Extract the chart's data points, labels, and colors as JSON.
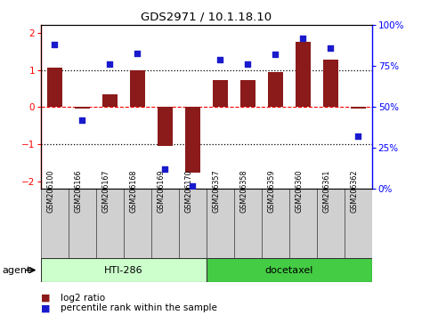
{
  "title": "GDS2971 / 10.1.18.10",
  "samples": [
    "GSM206100",
    "GSM206166",
    "GSM206167",
    "GSM206168",
    "GSM206169",
    "GSM206170",
    "GSM206357",
    "GSM206358",
    "GSM206359",
    "GSM206360",
    "GSM206361",
    "GSM206362"
  ],
  "log2_ratio": [
    1.07,
    -0.05,
    0.35,
    1.0,
    -1.05,
    -1.75,
    0.72,
    0.72,
    0.93,
    1.75,
    1.27,
    -0.05
  ],
  "pct_rank": [
    88,
    42,
    76,
    83,
    12,
    2,
    79,
    76,
    82,
    92,
    86,
    32
  ],
  "bar_color": "#8b1a1a",
  "dot_color": "#1a1acd",
  "ylim": [
    -2.2,
    2.2
  ],
  "yticks_left": [
    -2,
    -1,
    0,
    1,
    2
  ],
  "yticks_right": [
    0,
    25,
    50,
    75,
    100
  ],
  "hti_color": "#ccffcc",
  "doc_color": "#44cc44",
  "sample_box_color": "#d0d0d0",
  "legend": [
    {
      "color": "#8b1a1a",
      "label": "log2 ratio"
    },
    {
      "color": "#1a1acd",
      "label": "percentile rank within the sample"
    }
  ]
}
